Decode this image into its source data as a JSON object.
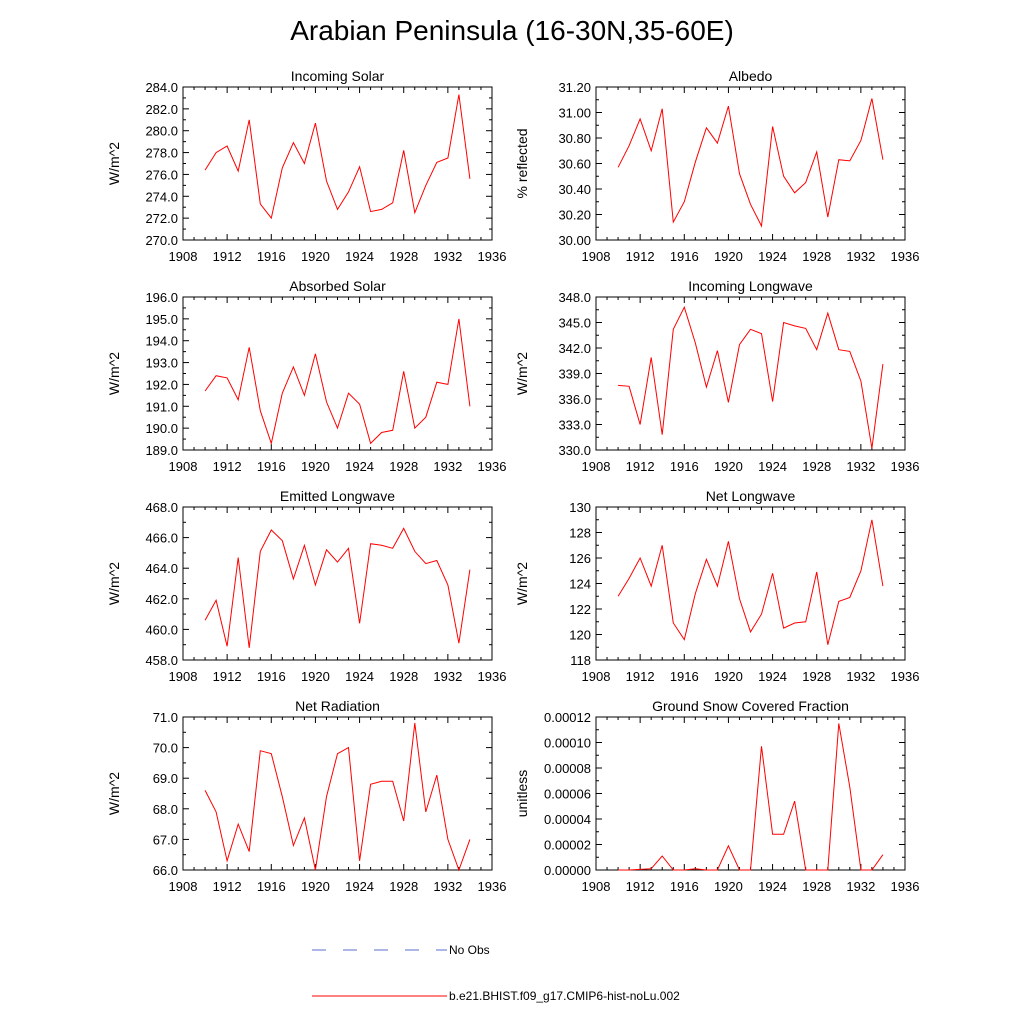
{
  "title": "Arabian Peninsula (16-30N,35-60E)",
  "legend": {
    "placement": "bottom-center",
    "entries": [
      {
        "label": "No Obs",
        "color": "#5a6fd0",
        "style": "dashed"
      },
      {
        "label": "b.e21.BHIST.f09_g17.CMIP6-hist-noLu.002",
        "color": "#ff0000",
        "style": "solid"
      }
    ]
  },
  "chart_data": [
    {
      "type": "line",
      "title": "Incoming Solar",
      "xlabel": "",
      "ylabel": "W/m^2",
      "xlim": [
        1908,
        1936
      ],
      "ylim": [
        270,
        284
      ],
      "xticks": [
        "1908",
        "1912",
        "1916",
        "1920",
        "1924",
        "1928",
        "1932",
        "1936"
      ],
      "xtick_values": [
        1908,
        1912,
        1916,
        1920,
        1924,
        1928,
        1932,
        1936
      ],
      "yticks": [
        "270.0",
        "272.0",
        "274.0",
        "276.0",
        "278.0",
        "280.0",
        "282.0",
        "284.0"
      ],
      "ytick_values": [
        270,
        272,
        274,
        276,
        278,
        280,
        282,
        284
      ],
      "series": [
        {
          "name": "b.e21.BHIST.f09_g17.CMIP6-hist-noLu.002",
          "color": "#ff0000",
          "x": [
            1910,
            1911,
            1912,
            1913,
            1914,
            1915,
            1916,
            1917,
            1918,
            1919,
            1920,
            1921,
            1922,
            1923,
            1924,
            1925,
            1926,
            1927,
            1928,
            1929,
            1930,
            1931,
            1932,
            1933,
            1934
          ],
          "y": [
            276.4,
            278.0,
            278.6,
            276.3,
            281.0,
            273.3,
            272.0,
            276.6,
            278.9,
            277.0,
            280.7,
            275.4,
            272.8,
            274.4,
            276.7,
            272.6,
            272.8,
            273.4,
            278.2,
            272.5,
            275.0,
            277.1,
            277.5,
            283.3,
            275.6
          ]
        }
      ]
    },
    {
      "type": "line",
      "title": "Albedo",
      "xlabel": "",
      "ylabel": "% reflected",
      "xlim": [
        1908,
        1936
      ],
      "ylim": [
        30.0,
        31.2
      ],
      "xticks": [
        "1908",
        "1912",
        "1916",
        "1920",
        "1924",
        "1928",
        "1932",
        "1936"
      ],
      "xtick_values": [
        1908,
        1912,
        1916,
        1920,
        1924,
        1928,
        1932,
        1936
      ],
      "yticks": [
        "30.00",
        "30.20",
        "30.40",
        "30.60",
        "30.80",
        "31.00",
        "31.20"
      ],
      "ytick_values": [
        30.0,
        30.2,
        30.4,
        30.6,
        30.8,
        31.0,
        31.2
      ],
      "series": [
        {
          "name": "b.e21.BHIST.f09_g17.CMIP6-hist-noLu.002",
          "color": "#ff0000",
          "x": [
            1910,
            1911,
            1912,
            1913,
            1914,
            1915,
            1916,
            1917,
            1918,
            1919,
            1920,
            1921,
            1922,
            1923,
            1924,
            1925,
            1926,
            1927,
            1928,
            1929,
            1930,
            1931,
            1932,
            1933,
            1934
          ],
          "y": [
            30.57,
            30.74,
            30.95,
            30.7,
            31.03,
            30.14,
            30.3,
            30.61,
            30.88,
            30.76,
            31.05,
            30.52,
            30.28,
            30.11,
            30.89,
            30.5,
            30.37,
            30.45,
            30.69,
            30.18,
            30.63,
            30.62,
            30.78,
            31.11,
            30.63
          ]
        }
      ]
    },
    {
      "type": "line",
      "title": "Absorbed Solar",
      "xlabel": "",
      "ylabel": "W/m^2",
      "xlim": [
        1908,
        1936
      ],
      "ylim": [
        189,
        196
      ],
      "xticks": [
        "1908",
        "1912",
        "1916",
        "1920",
        "1924",
        "1928",
        "1932",
        "1936"
      ],
      "xtick_values": [
        1908,
        1912,
        1916,
        1920,
        1924,
        1928,
        1932,
        1936
      ],
      "yticks": [
        "189.0",
        "190.0",
        "191.0",
        "192.0",
        "193.0",
        "194.0",
        "195.0",
        "196.0"
      ],
      "ytick_values": [
        189,
        190,
        191,
        192,
        193,
        194,
        195,
        196
      ],
      "series": [
        {
          "name": "b.e21.BHIST.f09_g17.CMIP6-hist-noLu.002",
          "color": "#ff0000",
          "x": [
            1910,
            1911,
            1912,
            1913,
            1914,
            1915,
            1916,
            1917,
            1918,
            1919,
            1920,
            1921,
            1922,
            1923,
            1924,
            1925,
            1926,
            1927,
            1928,
            1929,
            1930,
            1931,
            1932,
            1933,
            1934
          ],
          "y": [
            191.7,
            192.4,
            192.3,
            191.3,
            193.7,
            190.8,
            189.3,
            191.6,
            192.8,
            191.5,
            193.4,
            191.2,
            190.0,
            191.6,
            191.1,
            189.3,
            189.8,
            189.9,
            192.6,
            190.0,
            190.5,
            192.1,
            192.0,
            195.0,
            191.0
          ]
        }
      ]
    },
    {
      "type": "line",
      "title": "Incoming Longwave",
      "xlabel": "",
      "ylabel": "W/m^2",
      "xlim": [
        1908,
        1936
      ],
      "ylim": [
        330,
        348
      ],
      "xticks": [
        "1908",
        "1912",
        "1916",
        "1920",
        "1924",
        "1928",
        "1932",
        "1936"
      ],
      "xtick_values": [
        1908,
        1912,
        1916,
        1920,
        1924,
        1928,
        1932,
        1936
      ],
      "yticks": [
        "330.0",
        "333.0",
        "336.0",
        "339.0",
        "342.0",
        "345.0",
        "348.0"
      ],
      "ytick_values": [
        330,
        333,
        336,
        339,
        342,
        345,
        348
      ],
      "series": [
        {
          "name": "b.e21.BHIST.f09_g17.CMIP6-hist-noLu.002",
          "color": "#ff0000",
          "x": [
            1910,
            1911,
            1912,
            1913,
            1914,
            1915,
            1916,
            1917,
            1918,
            1919,
            1920,
            1921,
            1922,
            1923,
            1924,
            1925,
            1926,
            1927,
            1928,
            1929,
            1930,
            1931,
            1932,
            1933,
            1934
          ],
          "y": [
            337.6,
            337.5,
            333.0,
            340.9,
            331.8,
            344.2,
            346.8,
            342.6,
            337.4,
            341.7,
            335.6,
            342.4,
            344.2,
            343.7,
            335.7,
            345.0,
            344.6,
            344.3,
            341.8,
            346.1,
            341.8,
            341.6,
            338.1,
            330.2,
            340.1
          ]
        }
      ]
    },
    {
      "type": "line",
      "title": "Emitted Longwave",
      "xlabel": "",
      "ylabel": "W/m^2",
      "xlim": [
        1908,
        1936
      ],
      "ylim": [
        458,
        468
      ],
      "xticks": [
        "1908",
        "1912",
        "1916",
        "1920",
        "1924",
        "1928",
        "1932",
        "1936"
      ],
      "xtick_values": [
        1908,
        1912,
        1916,
        1920,
        1924,
        1928,
        1932,
        1936
      ],
      "yticks": [
        "458.0",
        "460.0",
        "462.0",
        "464.0",
        "466.0",
        "468.0"
      ],
      "ytick_values": [
        458,
        460,
        462,
        464,
        466,
        468
      ],
      "series": [
        {
          "name": "b.e21.BHIST.f09_g17.CMIP6-hist-noLu.002",
          "color": "#ff0000",
          "x": [
            1910,
            1911,
            1912,
            1913,
            1914,
            1915,
            1916,
            1917,
            1918,
            1919,
            1920,
            1921,
            1922,
            1923,
            1924,
            1925,
            1926,
            1927,
            1928,
            1929,
            1930,
            1931,
            1932,
            1933,
            1934
          ],
          "y": [
            460.6,
            461.9,
            458.9,
            464.7,
            458.8,
            465.1,
            466.5,
            465.8,
            463.3,
            465.5,
            462.9,
            465.2,
            464.4,
            465.3,
            460.4,
            465.6,
            465.5,
            465.3,
            466.6,
            465.1,
            464.3,
            464.5,
            462.9,
            459.1,
            463.9
          ]
        }
      ]
    },
    {
      "type": "line",
      "title": "Net Longwave",
      "xlabel": "",
      "ylabel": "W/m^2",
      "xlim": [
        1908,
        1936
      ],
      "ylim": [
        118,
        130
      ],
      "xticks": [
        "1908",
        "1912",
        "1916",
        "1920",
        "1924",
        "1928",
        "1932",
        "1936"
      ],
      "xtick_values": [
        1908,
        1912,
        1916,
        1920,
        1924,
        1928,
        1932,
        1936
      ],
      "yticks": [
        "118",
        "120",
        "122",
        "124",
        "126",
        "128",
        "130"
      ],
      "ytick_values": [
        118,
        120,
        122,
        124,
        126,
        128,
        130
      ],
      "series": [
        {
          "name": "b.e21.BHIST.f09_g17.CMIP6-hist-noLu.002",
          "color": "#ff0000",
          "x": [
            1910,
            1911,
            1912,
            1913,
            1914,
            1915,
            1916,
            1917,
            1918,
            1919,
            1920,
            1921,
            1922,
            1923,
            1924,
            1925,
            1926,
            1927,
            1928,
            1929,
            1930,
            1931,
            1932,
            1933,
            1934
          ],
          "y": [
            123.0,
            124.4,
            126.0,
            123.8,
            127.0,
            120.9,
            119.6,
            123.2,
            125.9,
            123.8,
            127.3,
            122.8,
            120.2,
            121.6,
            124.8,
            120.5,
            120.9,
            121.0,
            124.9,
            119.2,
            122.6,
            122.9,
            125.0,
            129.0,
            123.8
          ]
        }
      ]
    },
    {
      "type": "line",
      "title": "Net Radiation",
      "xlabel": "",
      "ylabel": "W/m^2",
      "xlim": [
        1908,
        1936
      ],
      "ylim": [
        66,
        71
      ],
      "xticks": [
        "1908",
        "1912",
        "1916",
        "1920",
        "1924",
        "1928",
        "1932",
        "1936"
      ],
      "xtick_values": [
        1908,
        1912,
        1916,
        1920,
        1924,
        1928,
        1932,
        1936
      ],
      "yticks": [
        "66.0",
        "67.0",
        "68.0",
        "69.0",
        "70.0",
        "71.0"
      ],
      "ytick_values": [
        66,
        67,
        68,
        69,
        70,
        71
      ],
      "series": [
        {
          "name": "b.e21.BHIST.f09_g17.CMIP6-hist-noLu.002",
          "color": "#ff0000",
          "x": [
            1910,
            1911,
            1912,
            1913,
            1914,
            1915,
            1916,
            1917,
            1918,
            1919,
            1920,
            1921,
            1922,
            1923,
            1924,
            1925,
            1926,
            1927,
            1928,
            1929,
            1930,
            1931,
            1932,
            1933,
            1934
          ],
          "y": [
            68.6,
            67.9,
            66.3,
            67.5,
            66.6,
            69.9,
            69.8,
            68.4,
            66.8,
            67.7,
            66.0,
            68.4,
            69.8,
            70.0,
            66.3,
            68.8,
            68.9,
            68.9,
            67.6,
            70.8,
            67.9,
            69.1,
            67.0,
            66.0,
            67.0
          ]
        }
      ]
    },
    {
      "type": "line",
      "title": "Ground Snow Covered Fraction",
      "xlabel": "",
      "ylabel": "unitless",
      "xlim": [
        1908,
        1936
      ],
      "ylim": [
        0,
        0.00012
      ],
      "xticks": [
        "1908",
        "1912",
        "1916",
        "1920",
        "1924",
        "1928",
        "1932",
        "1936"
      ],
      "xtick_values": [
        1908,
        1912,
        1916,
        1920,
        1924,
        1928,
        1932,
        1936
      ],
      "yticks": [
        "0.00000",
        "0.00002",
        "0.00004",
        "0.00006",
        "0.00008",
        "0.00010",
        "0.00012"
      ],
      "ytick_values": [
        0,
        2e-05,
        4e-05,
        6e-05,
        8e-05,
        0.0001,
        0.00012
      ],
      "series": [
        {
          "name": "b.e21.BHIST.f09_g17.CMIP6-hist-noLu.002",
          "color": "#ff0000",
          "x": [
            1910,
            1911,
            1912,
            1913,
            1914,
            1915,
            1916,
            1917,
            1918,
            1919,
            1920,
            1921,
            1922,
            1923,
            1924,
            1925,
            1926,
            1927,
            1928,
            1929,
            1930,
            1931,
            1932,
            1933,
            1934
          ],
          "y": [
            0,
            0,
            5e-07,
            1e-06,
            1.1e-05,
            0,
            0,
            1e-06,
            0,
            0,
            1.9e-05,
            0,
            0,
            9.7e-05,
            2.8e-05,
            2.8e-05,
            5.4e-05,
            0,
            0,
            0,
            0.000115,
            6.5e-05,
            0,
            0,
            1.2e-05
          ]
        }
      ]
    }
  ]
}
